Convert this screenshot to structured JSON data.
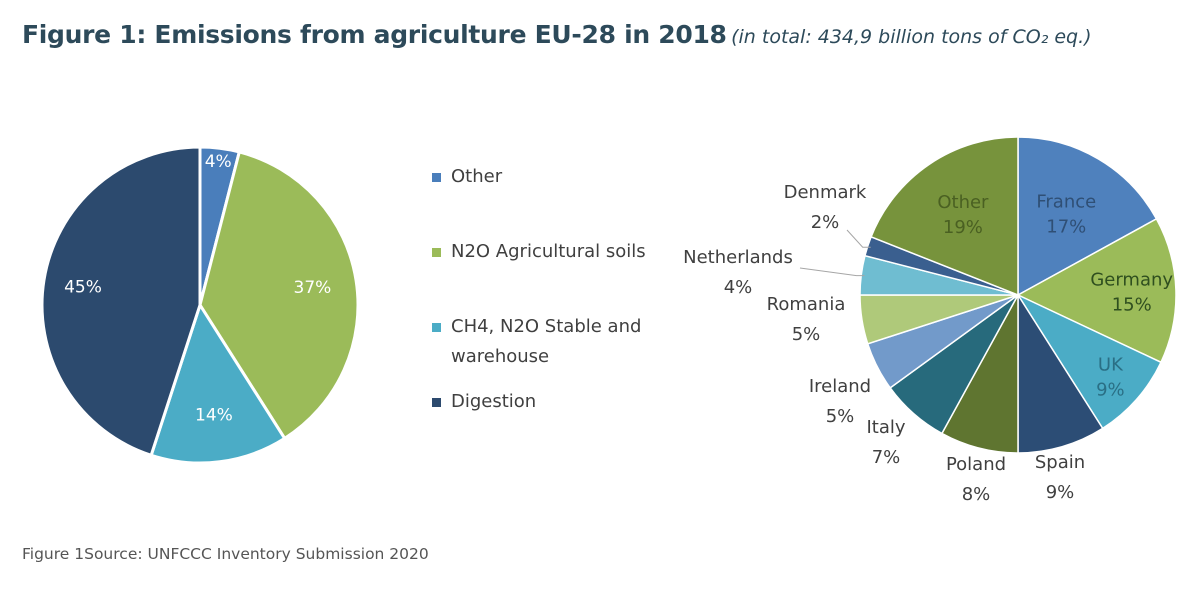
{
  "header": {
    "title": "Figure 1: Emissions from agriculture EU-28 in 2018",
    "subtitle": "(in total: 434,9 billion tons of CO₂ eq.)"
  },
  "footer": {
    "source": "Figure 1Source: UNFCCC Inventory Submission 2020"
  },
  "chart_data": [
    {
      "type": "pie",
      "start_angle_deg": 0,
      "direction": "clockwise",
      "legend_position": "right",
      "slices": [
        {
          "label": "Other",
          "value": 4,
          "value_label": "4%",
          "color": "#4a7ebb"
        },
        {
          "label": "N2O Agricultural soils",
          "value": 37,
          "value_label": "37%",
          "color": "#9bbb59"
        },
        {
          "label": "CH4, N2O Stable and warehouse",
          "value": 14,
          "value_label": "14%",
          "color": "#4bacc6"
        },
        {
          "label": "Digestion",
          "value": 45,
          "value_label": "45%",
          "color": "#2c4a6e"
        }
      ]
    },
    {
      "type": "pie",
      "start_angle_deg": 0,
      "direction": "clockwise",
      "legend_position": "none",
      "slices": [
        {
          "label": "France",
          "value": 17,
          "value_label": "17%",
          "color": "#4f81bd"
        },
        {
          "label": "Germany",
          "value": 15,
          "value_label": "15%",
          "color": "#9bbb59"
        },
        {
          "label": "UK",
          "value": 9,
          "value_label": "9%",
          "color": "#4bacc6"
        },
        {
          "label": "Spain",
          "value": 9,
          "value_label": "9%",
          "color": "#2c4d75"
        },
        {
          "label": "Poland",
          "value": 8,
          "value_label": "8%",
          "color": "#5f7530"
        },
        {
          "label": "Italy",
          "value": 7,
          "value_label": "7%",
          "color": "#276a7c"
        },
        {
          "label": "Ireland",
          "value": 5,
          "value_label": "5%",
          "color": "#729aca"
        },
        {
          "label": "Romania",
          "value": 5,
          "value_label": "5%",
          "color": "#afc97a"
        },
        {
          "label": "Netherlands",
          "value": 4,
          "value_label": "4%",
          "color": "#6fbdd1"
        },
        {
          "label": "Denmark",
          "value": 2,
          "value_label": "2%",
          "color": "#3a5f8f"
        },
        {
          "label": "Other",
          "value": 19,
          "value_label": "19%",
          "color": "#77933c"
        }
      ]
    }
  ]
}
